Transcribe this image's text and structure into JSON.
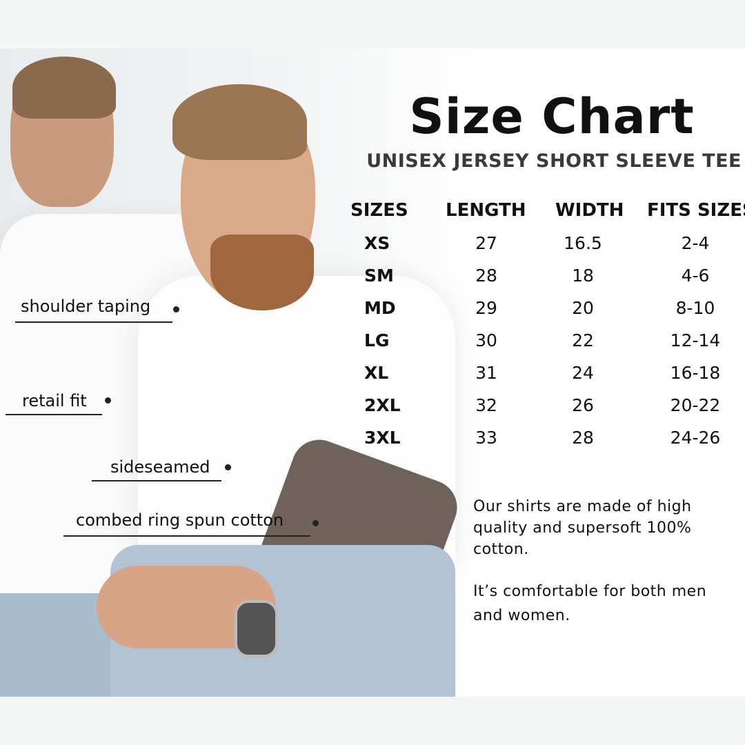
{
  "title": "Size Chart",
  "subtitle": "UNISEX JERSEY SHORT SLEEVE TEE",
  "table": {
    "headers": [
      "SIZES",
      "LENGTH",
      "WIDTH",
      "FITS SIZES"
    ],
    "rows": [
      [
        "XS",
        "27",
        "16.5",
        "2-4"
      ],
      [
        "SM",
        "28",
        "18",
        "4-6"
      ],
      [
        "MD",
        "29",
        "20",
        "8-10"
      ],
      [
        "LG",
        "30",
        "22",
        "12-14"
      ],
      [
        "XL",
        "31",
        "24",
        "16-18"
      ],
      [
        "2XL",
        "32",
        "26",
        "20-22"
      ],
      [
        "3XL",
        "33",
        "28",
        "24-26"
      ]
    ]
  },
  "description": {
    "p1": [
      "Our shirts are made of  high",
      "quality and supersoft 100%",
      "cotton."
    ],
    "p2": [
      "It’s comfortable for both men",
      "and women."
    ]
  },
  "features": [
    "shoulder taping",
    "retail fit",
    "sideseamed",
    "combed ring spun cotton"
  ]
}
